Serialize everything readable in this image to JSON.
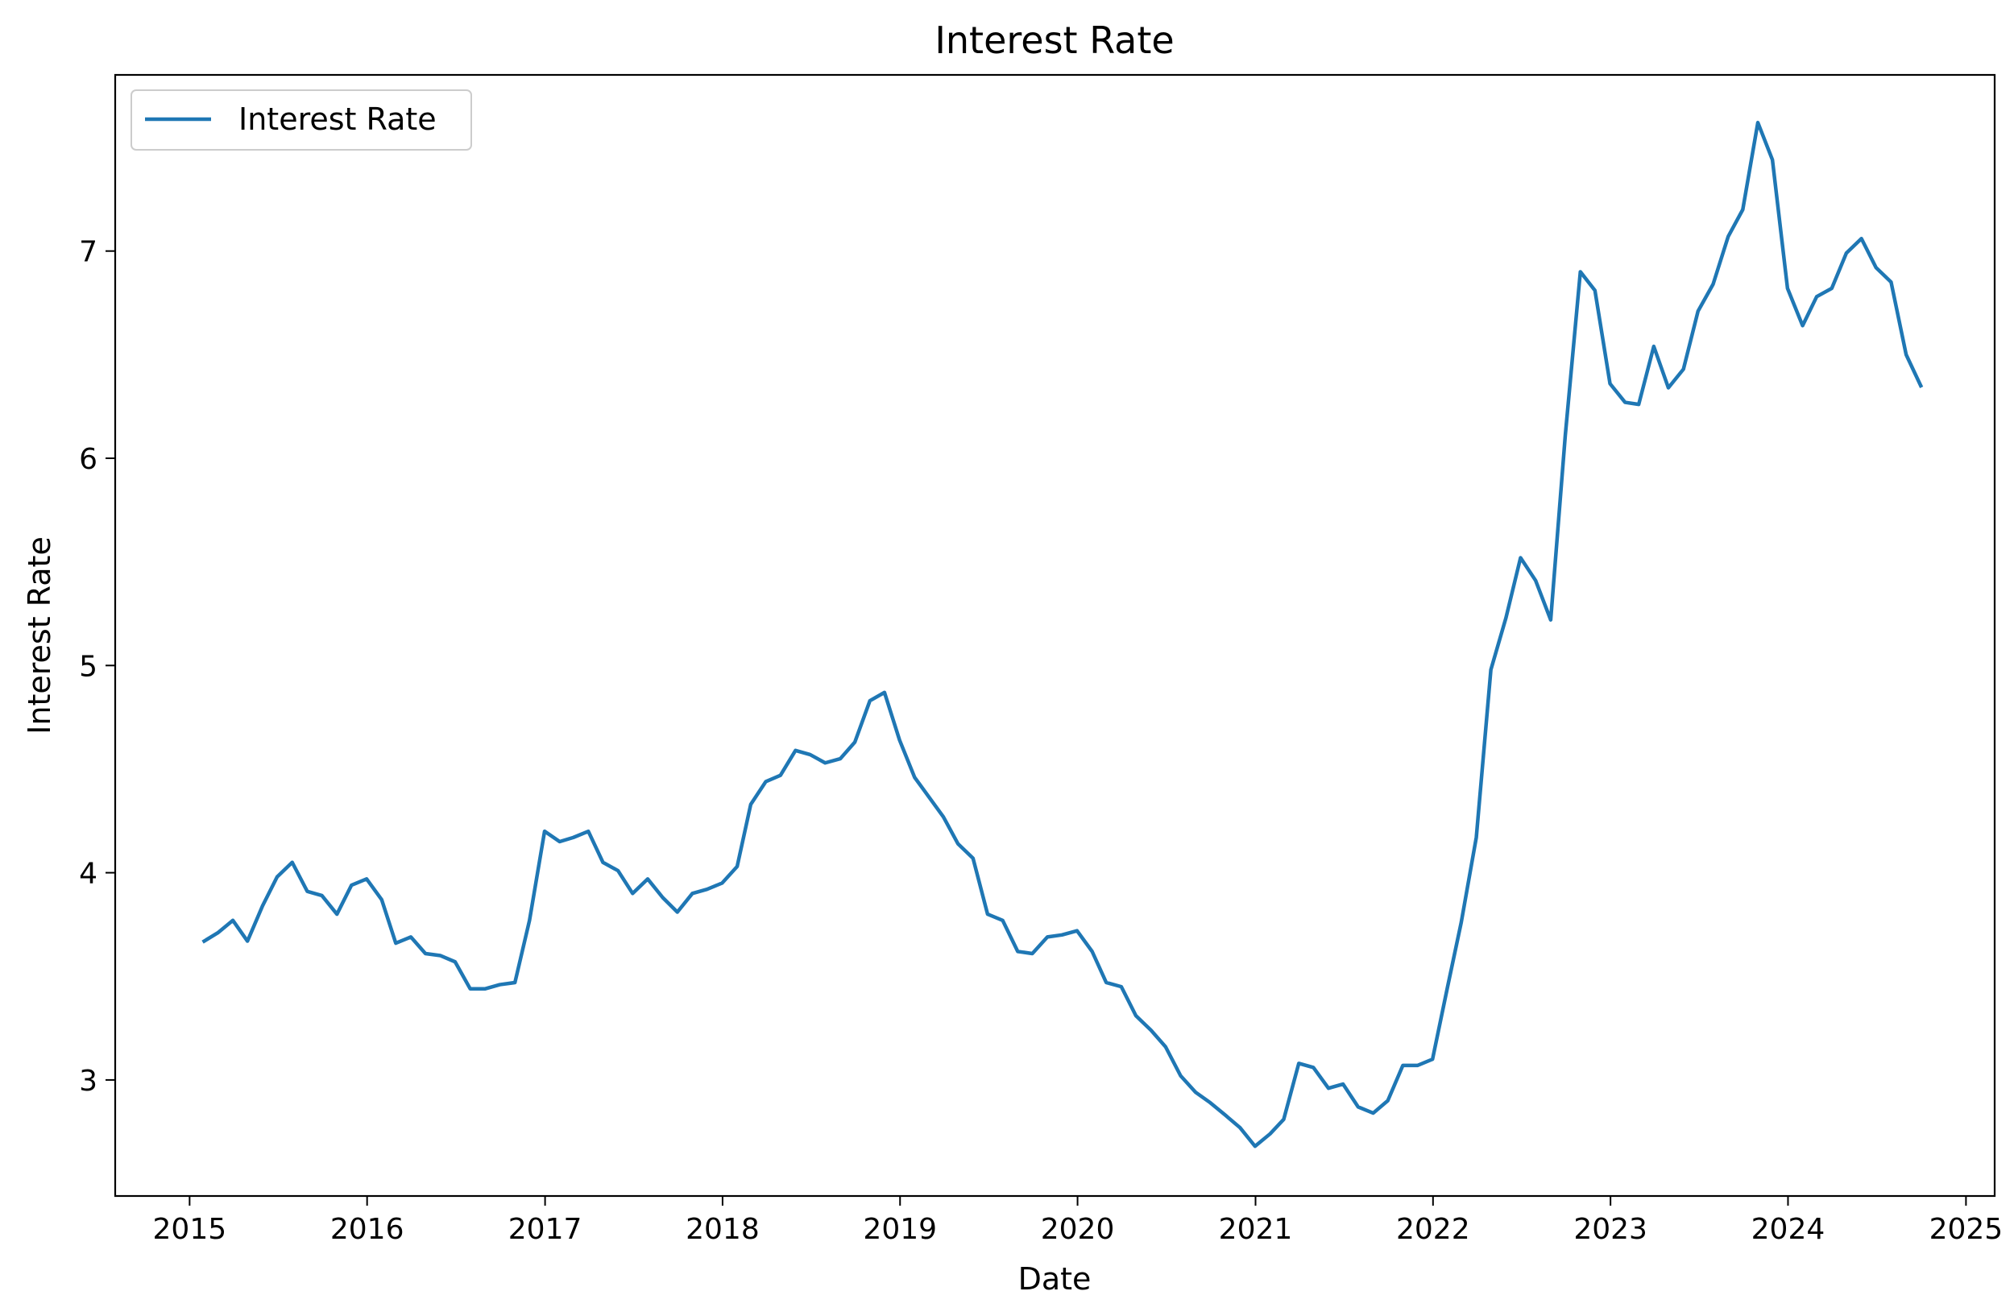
{
  "chart_data": {
    "type": "line",
    "title": "Interest Rate",
    "xlabel": "Date",
    "ylabel": "Interest Rate",
    "x_ticks": [
      "2015",
      "2016",
      "2017",
      "2018",
      "2019",
      "2020",
      "2021",
      "2022",
      "2023",
      "2024",
      "2025"
    ],
    "y_ticks": [
      "3",
      "4",
      "5",
      "6",
      "7"
    ],
    "xlim": [
      "2014-08-01",
      "2025-03-01"
    ],
    "ylim": [
      2.44,
      7.85
    ],
    "grid": false,
    "legend_position": "top-left",
    "series": [
      {
        "name": "Interest Rate",
        "color": "#1f77b4",
        "points": [
          [
            "2015-01-31",
            3.67
          ],
          [
            "2015-02-28",
            3.71
          ],
          [
            "2015-03-31",
            3.77
          ],
          [
            "2015-04-30",
            3.67
          ],
          [
            "2015-05-31",
            3.84
          ],
          [
            "2015-06-30",
            3.98
          ],
          [
            "2015-07-31",
            4.05
          ],
          [
            "2015-08-31",
            3.91
          ],
          [
            "2015-09-30",
            3.89
          ],
          [
            "2015-10-31",
            3.8
          ],
          [
            "2015-11-30",
            3.94
          ],
          [
            "2015-12-31",
            3.97
          ],
          [
            "2016-01-31",
            3.87
          ],
          [
            "2016-02-29",
            3.66
          ],
          [
            "2016-03-31",
            3.69
          ],
          [
            "2016-04-30",
            3.61
          ],
          [
            "2016-05-31",
            3.6
          ],
          [
            "2016-06-30",
            3.57
          ],
          [
            "2016-07-31",
            3.44
          ],
          [
            "2016-08-31",
            3.44
          ],
          [
            "2016-09-30",
            3.46
          ],
          [
            "2016-10-31",
            3.47
          ],
          [
            "2016-11-30",
            3.77
          ],
          [
            "2016-12-31",
            4.2
          ],
          [
            "2017-01-31",
            4.15
          ],
          [
            "2017-02-28",
            4.17
          ],
          [
            "2017-03-31",
            4.2
          ],
          [
            "2017-04-30",
            4.05
          ],
          [
            "2017-05-31",
            4.01
          ],
          [
            "2017-06-30",
            3.9
          ],
          [
            "2017-07-31",
            3.97
          ],
          [
            "2017-08-31",
            3.88
          ],
          [
            "2017-09-30",
            3.81
          ],
          [
            "2017-10-31",
            3.9
          ],
          [
            "2017-11-30",
            3.92
          ],
          [
            "2017-12-31",
            3.95
          ],
          [
            "2018-01-31",
            4.03
          ],
          [
            "2018-02-28",
            4.33
          ],
          [
            "2018-03-31",
            4.44
          ],
          [
            "2018-04-30",
            4.47
          ],
          [
            "2018-05-31",
            4.59
          ],
          [
            "2018-06-30",
            4.57
          ],
          [
            "2018-07-31",
            4.53
          ],
          [
            "2018-08-31",
            4.55
          ],
          [
            "2018-09-30",
            4.63
          ],
          [
            "2018-10-31",
            4.83
          ],
          [
            "2018-11-30",
            4.87
          ],
          [
            "2018-12-31",
            4.64
          ],
          [
            "2019-01-31",
            4.46
          ],
          [
            "2019-02-28",
            4.37
          ],
          [
            "2019-03-31",
            4.27
          ],
          [
            "2019-04-30",
            4.14
          ],
          [
            "2019-05-31",
            4.07
          ],
          [
            "2019-06-30",
            3.8
          ],
          [
            "2019-07-31",
            3.77
          ],
          [
            "2019-08-31",
            3.62
          ],
          [
            "2019-09-30",
            3.61
          ],
          [
            "2019-10-31",
            3.69
          ],
          [
            "2019-11-30",
            3.7
          ],
          [
            "2019-12-31",
            3.72
          ],
          [
            "2020-01-31",
            3.62
          ],
          [
            "2020-02-29",
            3.47
          ],
          [
            "2020-03-31",
            3.45
          ],
          [
            "2020-04-30",
            3.31
          ],
          [
            "2020-05-31",
            3.24
          ],
          [
            "2020-06-30",
            3.16
          ],
          [
            "2020-07-31",
            3.02
          ],
          [
            "2020-08-31",
            2.94
          ],
          [
            "2020-09-30",
            2.89
          ],
          [
            "2020-10-31",
            2.83
          ],
          [
            "2020-11-30",
            2.77
          ],
          [
            "2020-12-31",
            2.68
          ],
          [
            "2021-01-31",
            2.74
          ],
          [
            "2021-02-28",
            2.81
          ],
          [
            "2021-03-31",
            3.08
          ],
          [
            "2021-04-30",
            3.06
          ],
          [
            "2021-05-31",
            2.96
          ],
          [
            "2021-06-30",
            2.98
          ],
          [
            "2021-07-31",
            2.87
          ],
          [
            "2021-08-31",
            2.84
          ],
          [
            "2021-09-30",
            2.9
          ],
          [
            "2021-10-31",
            3.07
          ],
          [
            "2021-11-30",
            3.07
          ],
          [
            "2021-12-31",
            3.1
          ],
          [
            "2022-01-31",
            3.45
          ],
          [
            "2022-02-28",
            3.76
          ],
          [
            "2022-03-31",
            4.17
          ],
          [
            "2022-04-30",
            4.98
          ],
          [
            "2022-05-31",
            5.23
          ],
          [
            "2022-06-30",
            5.52
          ],
          [
            "2022-07-31",
            5.41
          ],
          [
            "2022-08-31",
            5.22
          ],
          [
            "2022-09-30",
            6.11
          ],
          [
            "2022-10-31",
            6.9
          ],
          [
            "2022-11-30",
            6.81
          ],
          [
            "2022-12-31",
            6.36
          ],
          [
            "2023-01-31",
            6.27
          ],
          [
            "2023-02-28",
            6.26
          ],
          [
            "2023-03-31",
            6.54
          ],
          [
            "2023-04-30",
            6.34
          ],
          [
            "2023-05-31",
            6.43
          ],
          [
            "2023-06-30",
            6.71
          ],
          [
            "2023-07-31",
            6.84
          ],
          [
            "2023-08-31",
            7.07
          ],
          [
            "2023-09-30",
            7.2
          ],
          [
            "2023-10-31",
            7.62
          ],
          [
            "2023-11-30",
            7.44
          ],
          [
            "2023-12-31",
            6.82
          ],
          [
            "2024-01-31",
            6.64
          ],
          [
            "2024-02-29",
            6.78
          ],
          [
            "2024-03-31",
            6.82
          ],
          [
            "2024-04-30",
            6.99
          ],
          [
            "2024-05-31",
            7.06
          ],
          [
            "2024-06-30",
            6.92
          ],
          [
            "2024-07-31",
            6.85
          ],
          [
            "2024-08-31",
            6.5
          ],
          [
            "2024-09-30",
            6.35
          ]
        ]
      }
    ]
  }
}
